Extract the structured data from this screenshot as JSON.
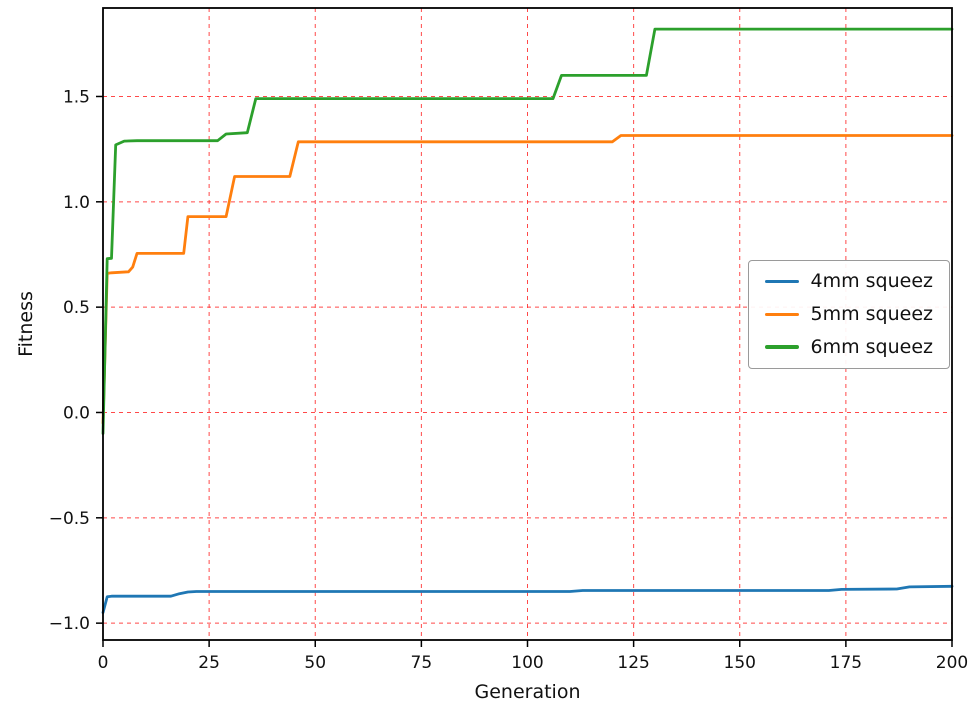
{
  "figure": {
    "background": "#ffffff",
    "spine_color": "#000000"
  },
  "chart_data": {
    "type": "line",
    "title": "",
    "xlabel": "Generation",
    "ylabel": "Fitness",
    "xlim": [
      0,
      200
    ],
    "ylim": [
      -1.08,
      1.92
    ],
    "xticks": [
      "0",
      "25",
      "50",
      "75",
      "100",
      "125",
      "150",
      "175",
      "200"
    ],
    "yticks": [
      "-1.0",
      "-0.5",
      "0.0",
      "0.5",
      "1.0",
      "1.5"
    ],
    "grid": {
      "on": true,
      "color": "#ff2a2a",
      "style": "dashed"
    },
    "legend": {
      "position": "center-right"
    },
    "series": [
      {
        "name": "4mm squeez",
        "color": "#1f77b4",
        "points": [
          [
            0,
            -0.95
          ],
          [
            1,
            -0.875
          ],
          [
            2,
            -0.872
          ],
          [
            16,
            -0.872
          ],
          [
            18,
            -0.86
          ],
          [
            20,
            -0.852
          ],
          [
            22,
            -0.85
          ],
          [
            110,
            -0.85
          ],
          [
            113,
            -0.845
          ],
          [
            171,
            -0.845
          ],
          [
            174,
            -0.84
          ],
          [
            187,
            -0.838
          ],
          [
            190,
            -0.828
          ],
          [
            200,
            -0.825
          ]
        ]
      },
      {
        "name": "5mm squeez",
        "color": "#ff7f0e",
        "points": [
          [
            0,
            -0.05
          ],
          [
            1,
            0.66
          ],
          [
            2,
            0.663
          ],
          [
            6,
            0.668
          ],
          [
            7,
            0.69
          ],
          [
            8,
            0.755
          ],
          [
            19,
            0.755
          ],
          [
            20,
            0.93
          ],
          [
            29,
            0.93
          ],
          [
            31,
            1.12
          ],
          [
            44,
            1.12
          ],
          [
            46,
            1.285
          ],
          [
            120,
            1.285
          ],
          [
            122,
            1.315
          ],
          [
            200,
            1.315
          ]
        ]
      },
      {
        "name": "6mm squeez",
        "color": "#2ca02c",
        "points": [
          [
            0,
            -0.1
          ],
          [
            1,
            0.73
          ],
          [
            2,
            0.732
          ],
          [
            3,
            1.27
          ],
          [
            5,
            1.288
          ],
          [
            8,
            1.29
          ],
          [
            27,
            1.29
          ],
          [
            29,
            1.322
          ],
          [
            34,
            1.328
          ],
          [
            36,
            1.49
          ],
          [
            106,
            1.49
          ],
          [
            108,
            1.6
          ],
          [
            128,
            1.6
          ],
          [
            130,
            1.82
          ],
          [
            200,
            1.82
          ]
        ]
      }
    ]
  }
}
